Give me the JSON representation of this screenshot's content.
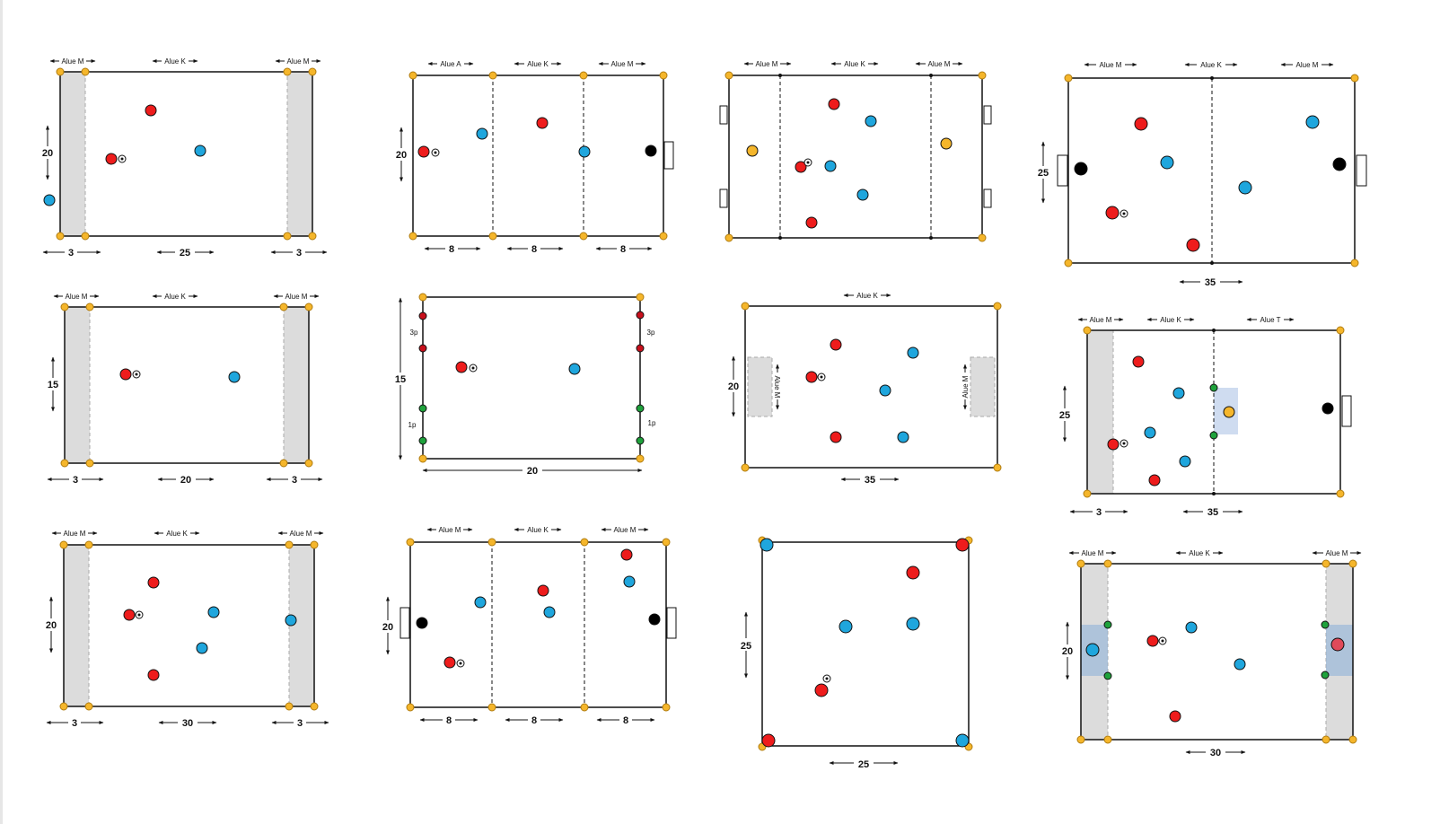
{
  "colors": {
    "red": "#ee1c1c",
    "blue": "#1fa6dd",
    "black": "#000000",
    "yellow": "#f5b62b",
    "green": "#1fa23c",
    "darkred": "#c8101c",
    "zone": "#dcdcdc",
    "highlight": "#cfdcf0"
  },
  "icons": {
    "ball": "soccer-ball-icon",
    "cone": "cone-marker-icon",
    "goal": "goal-icon"
  },
  "diagrams": [
    {
      "zone_labels": [
        "Alue M",
        "Alue K",
        "Alue M"
      ],
      "dims": [
        "20",
        "3",
        "25",
        "3"
      ]
    },
    {
      "zone_labels": [
        "Alue A",
        "Alue K",
        "Alue M"
      ],
      "dims": [
        "20",
        "8",
        "8",
        "8"
      ]
    },
    {
      "zone_labels": [
        "Alue M",
        "Alue K",
        "Alue M"
      ],
      "dims": []
    },
    {
      "zone_labels": [
        "Alue M",
        "Alue K",
        "Alue M"
      ],
      "dims": [
        "25",
        "35"
      ]
    },
    {
      "zone_labels": [
        "Alue M",
        "Alue K",
        "Alue M"
      ],
      "dims": [
        "15",
        "3",
        "20",
        "3"
      ]
    },
    {
      "zone_labels": [
        "3p",
        "3p",
        "1p",
        "1p"
      ],
      "dims": [
        "15",
        "20"
      ]
    },
    {
      "zone_labels": [
        "Alue K",
        "Alue M",
        "Alue M"
      ],
      "dims": [
        "20",
        "35"
      ]
    },
    {
      "zone_labels": [
        "Alue M",
        "Alue K",
        "Alue T"
      ],
      "dims": [
        "25",
        "3",
        "35"
      ]
    },
    {
      "zone_labels": [
        "Alue M",
        "Alue K",
        "Alue M"
      ],
      "dims": [
        "20",
        "3",
        "30",
        "3"
      ]
    },
    {
      "zone_labels": [
        "Alue M",
        "Alue K",
        "Alue M"
      ],
      "dims": [
        "20",
        "8",
        "8",
        "8"
      ]
    },
    {
      "zone_labels": [],
      "dims": [
        "25",
        "25"
      ]
    },
    {
      "zone_labels": [
        "Alue M",
        "Alue K",
        "Alue M"
      ],
      "dims": [
        "20",
        "30"
      ]
    }
  ]
}
